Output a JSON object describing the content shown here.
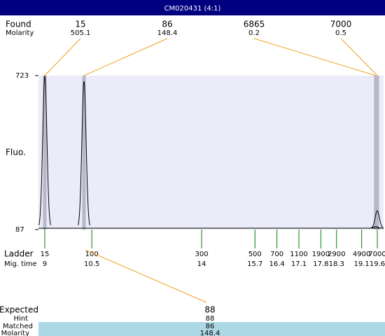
{
  "header": {
    "title": "CM020431 (4:1)"
  },
  "found": {
    "label": "Found",
    "sublabel": "Molarity",
    "peaks": [
      {
        "size": 15,
        "molarity": 505.1,
        "time": 9,
        "height": 723
      },
      {
        "size": 86,
        "molarity": 148.4,
        "time": 10.25,
        "height": 700
      },
      {
        "size": 6865,
        "molarity": 0.2,
        "time": 19.55,
        "height": 100
      },
      {
        "size": 7000,
        "molarity": 0.5,
        "time": 19.6,
        "height": 165
      }
    ]
  },
  "plot": {
    "ylabel": "Fluo.",
    "ylim": [
      87,
      723
    ],
    "yticks": [
      87,
      723
    ],
    "xlim": [
      8.8,
      19.8
    ]
  },
  "ladder": {
    "label": "Ladder",
    "sublabel": "Mig. time",
    "sizes": [
      15,
      100,
      300,
      500,
      700,
      1100,
      1900,
      2900,
      4900,
      7000
    ],
    "times": [
      9,
      10.5,
      14,
      15.7,
      16.4,
      17.1,
      17.8,
      18.3,
      19.1,
      19.6
    ]
  },
  "expected": {
    "label": "Expected",
    "value": 88,
    "hint_label": "Hint",
    "hint": 88,
    "matched_label": "Matched",
    "matched": 86,
    "molarity_label": "Molarity",
    "molarity": 148.4
  }
}
